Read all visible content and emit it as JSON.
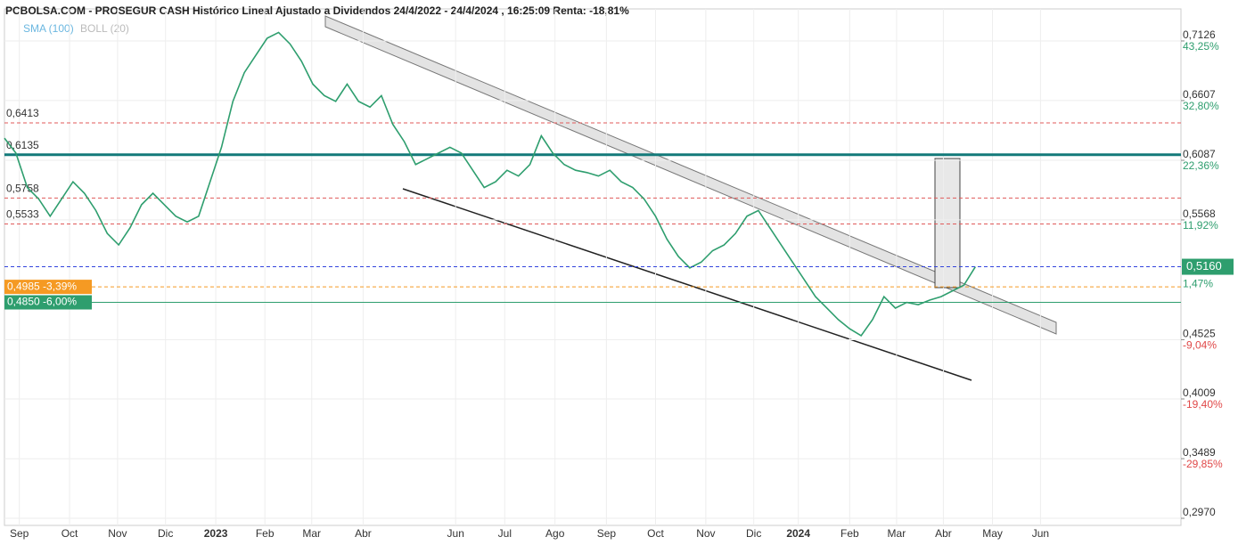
{
  "chart_data": {
    "type": "line",
    "title": "PCBOLSA.COM - PROSEGUR CASH Histórico Lineal Ajustado a Dividendos 24/4/2022 - 24/4/2024 , 16:25:09 Renta: -18,81%",
    "indicators": [
      "SMA (100)",
      "BOLL (20)"
    ],
    "series": [
      {
        "name": "PROSEGUR CASH",
        "color": "#2e9e6e",
        "values": [
          0.628,
          0.615,
          0.585,
          0.575,
          0.56,
          0.575,
          0.59,
          0.58,
          0.565,
          0.545,
          0.535,
          0.55,
          0.57,
          0.58,
          0.57,
          0.56,
          0.555,
          0.56,
          0.59,
          0.62,
          0.66,
          0.685,
          0.7,
          0.715,
          0.72,
          0.71,
          0.695,
          0.675,
          0.665,
          0.66,
          0.675,
          0.66,
          0.655,
          0.665,
          0.64,
          0.625,
          0.605,
          0.61,
          0.615,
          0.62,
          0.615,
          0.6,
          0.585,
          0.59,
          0.6,
          0.595,
          0.605,
          0.63,
          0.615,
          0.605,
          0.6,
          0.598,
          0.595,
          0.6,
          0.59,
          0.585,
          0.575,
          0.56,
          0.54,
          0.525,
          0.515,
          0.52,
          0.53,
          0.535,
          0.545,
          0.56,
          0.565,
          0.55,
          0.535,
          0.52,
          0.505,
          0.49,
          0.48,
          0.47,
          0.462,
          0.456,
          0.47,
          0.49,
          0.48,
          0.485,
          0.483,
          0.487,
          0.49,
          0.495,
          0.5,
          0.516
        ]
      }
    ],
    "xlim": [
      0,
      103
    ],
    "xticks": [
      {
        "value": 1.3,
        "label": "Sep"
      },
      {
        "value": 5.7,
        "label": "Oct"
      },
      {
        "value": 9.9,
        "label": "Nov"
      },
      {
        "value": 14.1,
        "label": "Dic"
      },
      {
        "value": 18.5,
        "label": "2023"
      },
      {
        "value": 22.8,
        "label": "Feb"
      },
      {
        "value": 26.9,
        "label": "Mar"
      },
      {
        "value": 31.4,
        "label": "Abr"
      },
      {
        "value": 39.5,
        "label": "Jun"
      },
      {
        "value": 43.8,
        "label": "Jul"
      },
      {
        "value": 48.2,
        "label": "Ago"
      },
      {
        "value": 52.7,
        "label": "Sep"
      },
      {
        "value": 57,
        "label": "Oct"
      },
      {
        "value": 61.4,
        "label": "Nov"
      },
      {
        "value": 65.6,
        "label": "Dic"
      },
      {
        "value": 69.5,
        "label": "2024"
      },
      {
        "value": 74,
        "label": "Feb"
      },
      {
        "value": 78.1,
        "label": "Mar"
      },
      {
        "value": 82.2,
        "label": "Abr"
      },
      {
        "value": 86.5,
        "label": "May"
      },
      {
        "value": 90.7,
        "label": "Jun"
      }
    ],
    "ylim": [
      0.2908,
      0.7405
    ],
    "yticks": [
      {
        "value": 0.7126,
        "label": "0,7126"
      },
      {
        "value": 0.6607,
        "label": "0,6607"
      },
      {
        "value": 0.6087,
        "label": "0,6087"
      },
      {
        "value": 0.5568,
        "label": "0,5568"
      },
      {
        "value": 0.4525,
        "label": "0,4525"
      },
      {
        "value": 0.4009,
        "label": "0,4009"
      },
      {
        "value": 0.3489,
        "label": "0,3489"
      },
      {
        "value": 0.297,
        "label": "0,2970"
      }
    ],
    "ytick_pct": [
      "43,25%",
      "32,80%",
      "22,36%",
      "11,92%",
      "-9,04%",
      "-19,40%",
      "-29,85%",
      ""
    ],
    "levels": [
      {
        "value": 0.6413,
        "label": "0,6413",
        "color": "#e05a5a"
      },
      {
        "value": 0.6135,
        "label": "0,6135",
        "color": "#137a7a"
      },
      {
        "value": 0.5758,
        "label": "0,5758",
        "color": "#e05a5a"
      },
      {
        "value": 0.5533,
        "label": "0,5533",
        "color": "#e05a5a"
      },
      {
        "value": 0.4985,
        "label": "0,4985 -3,39%",
        "color": "#f59a23"
      },
      {
        "value": 0.485,
        "label": "0,4850 -6,00%",
        "color": "#2e9e6e"
      }
    ],
    "last": {
      "value": 0.516,
      "label": "0,5160",
      "pct": "1,47%"
    }
  }
}
